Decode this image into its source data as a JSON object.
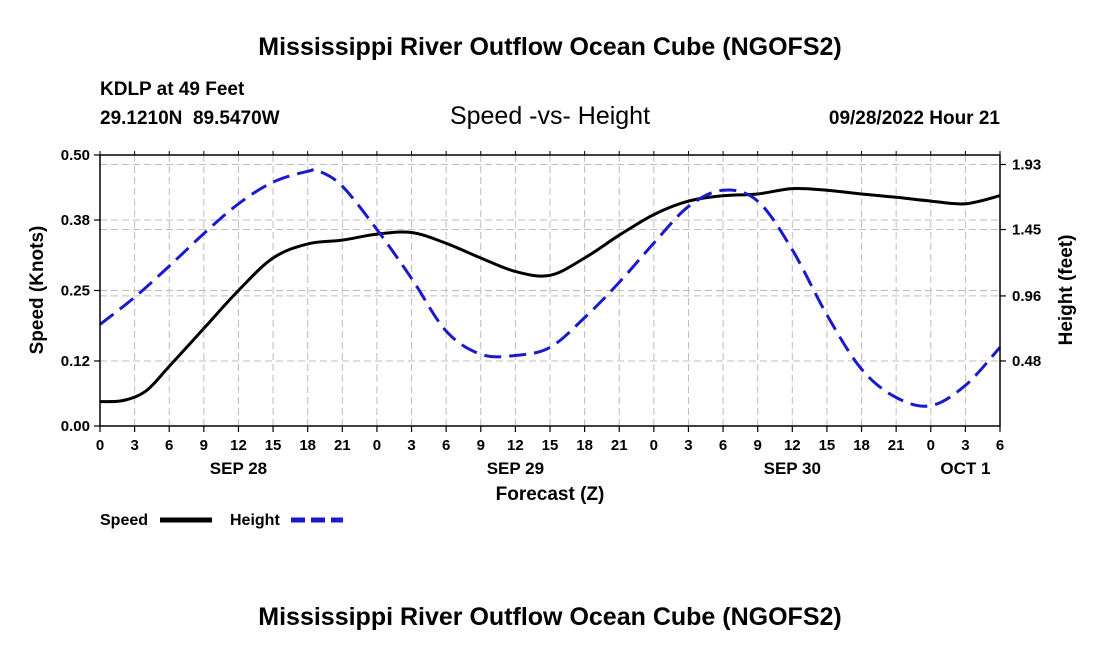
{
  "page": {
    "title": "Mississippi River Outflow Ocean Cube (NGOFS2)",
    "footer_title": "Mississippi River Outflow Ocean Cube (NGOFS2)"
  },
  "station": {
    "name": "KDLP at 49 Feet",
    "coords": "29.1210N  89.5470W",
    "timestamp": "09/28/2022 Hour 21"
  },
  "chart_data": {
    "type": "line",
    "title": "Speed -vs- Height",
    "xlabel": "Forecast (Z)",
    "ylabel_left": "Speed (Knots)",
    "ylabel_right": "Height (feet)",
    "x_hours_since_sep28_00z": [
      0,
      3,
      6,
      9,
      12,
      15,
      18,
      21,
      24,
      27,
      30,
      33,
      36,
      39,
      42,
      45,
      48,
      51,
      54,
      57,
      60,
      63,
      66,
      69,
      72,
      75,
      78
    ],
    "x_tick_labels": [
      "0",
      "3",
      "6",
      "9",
      "12",
      "15",
      "18",
      "21",
      "0",
      "3",
      "6",
      "9",
      "12",
      "15",
      "18",
      "21",
      "0",
      "3",
      "6",
      "9",
      "12",
      "15",
      "18",
      "21",
      "0",
      "3",
      "6"
    ],
    "date_labels": [
      {
        "label": "SEP 28",
        "hour": 12
      },
      {
        "label": "SEP 29",
        "hour": 36
      },
      {
        "label": "SEP 30",
        "hour": 60
      },
      {
        "label": "OCT 1",
        "hour": 75
      }
    ],
    "xlim": [
      0,
      78
    ],
    "y_left_ticks": [
      "0.00",
      "0.12",
      "0.25",
      "0.38",
      "0.50"
    ],
    "y_left_lim": [
      0,
      0.5
    ],
    "y_right_ticks": [
      "0.48",
      "0.96",
      "1.45",
      "1.93"
    ],
    "y_right_lim": [
      0,
      2.0
    ],
    "grid": true,
    "legend_position": "bottom-left",
    "series": [
      {
        "name": "Speed",
        "axis": "left",
        "color": "#000000",
        "style": "solid",
        "x": [
          0,
          2,
          4,
          6,
          9,
          12,
          15,
          18,
          21,
          24,
          27,
          30,
          33,
          36,
          39,
          42,
          45,
          48,
          51,
          54,
          57,
          60,
          63,
          66,
          69,
          72,
          75,
          78
        ],
        "values": [
          0.045,
          0.047,
          0.065,
          0.11,
          0.18,
          0.25,
          0.31,
          0.336,
          0.343,
          0.354,
          0.357,
          0.337,
          0.31,
          0.285,
          0.278,
          0.31,
          0.352,
          0.39,
          0.415,
          0.425,
          0.428,
          0.438,
          0.435,
          0.428,
          0.422,
          0.415,
          0.41,
          0.425
        ]
      },
      {
        "name": "Height",
        "axis": "right",
        "color": "#1a1acc",
        "style": "dashed",
        "x": [
          0,
          3,
          6,
          9,
          12,
          15,
          18,
          19,
          21,
          24,
          27,
          30,
          33,
          36,
          39,
          42,
          45,
          48,
          51,
          54,
          57,
          60,
          63,
          66,
          69,
          72,
          75,
          78
        ],
        "values": [
          0.75,
          0.95,
          1.18,
          1.42,
          1.64,
          1.8,
          1.88,
          1.88,
          1.77,
          1.45,
          1.09,
          0.7,
          0.53,
          0.52,
          0.58,
          0.8,
          1.06,
          1.35,
          1.62,
          1.74,
          1.66,
          1.3,
          0.82,
          0.42,
          0.21,
          0.15,
          0.3,
          0.58
        ]
      }
    ]
  }
}
